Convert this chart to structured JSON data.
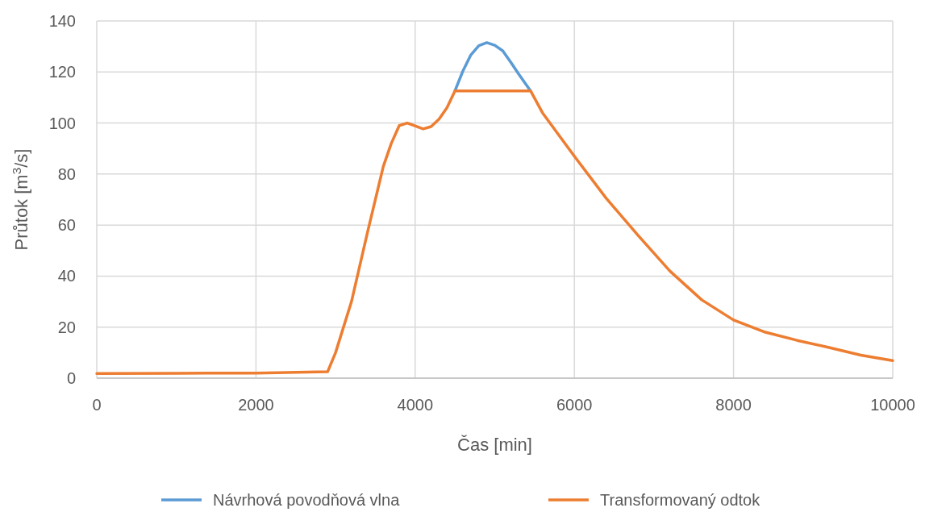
{
  "chart_data": {
    "type": "line",
    "xlabel": "Čas [min]",
    "ylabel": "Průtok [m$^{3}$/s]",
    "x": [
      0,
      1000,
      2000,
      2900,
      3000,
      3200,
      3400,
      3600,
      3700,
      3800,
      3900,
      4100,
      4200,
      4300,
      4400,
      4500,
      4600,
      4700,
      4800,
      4900,
      5000,
      5100,
      5200,
      5300,
      5450,
      5600,
      6000,
      6400,
      6800,
      7200,
      7600,
      8000,
      8400,
      8800,
      9200,
      9600,
      10000
    ],
    "series": [
      {
        "name": "Návrhová povodňová vlna",
        "color": "#5b9bd5",
        "values": [
          null,
          null,
          null,
          null,
          null,
          null,
          null,
          null,
          null,
          null,
          null,
          null,
          null,
          null,
          null,
          112.6,
          120.4,
          126.7,
          130.3,
          131.5,
          130.5,
          128.3,
          123.9,
          119.2,
          112.6,
          null,
          null,
          null,
          null,
          null,
          null,
          null,
          null,
          null,
          null,
          null,
          null
        ]
      },
      {
        "name": "Transformovaný odtok",
        "color": "#ed7d31",
        "values": [
          1.8,
          1.9,
          2.0,
          2.5,
          10,
          30,
          57,
          83,
          92,
          99,
          100,
          97.7,
          98.6,
          101.5,
          106,
          112.6,
          112.6,
          112.6,
          112.6,
          112.6,
          112.6,
          112.6,
          112.6,
          112.6,
          112.6,
          104,
          87,
          70.5,
          56,
          42,
          30.7,
          22.8,
          18,
          14.8,
          12,
          9,
          6.9
        ]
      }
    ],
    "xlim": [
      0,
      10000
    ],
    "xticks": [
      0,
      2000,
      4000,
      6000,
      8000,
      10000
    ],
    "ylim": [
      0,
      140
    ],
    "yticks": [
      0,
      20,
      40,
      60,
      80,
      100,
      120,
      140
    ],
    "grid": true,
    "legend": "bottom",
    "marker": "none",
    "line_style": "solid"
  }
}
